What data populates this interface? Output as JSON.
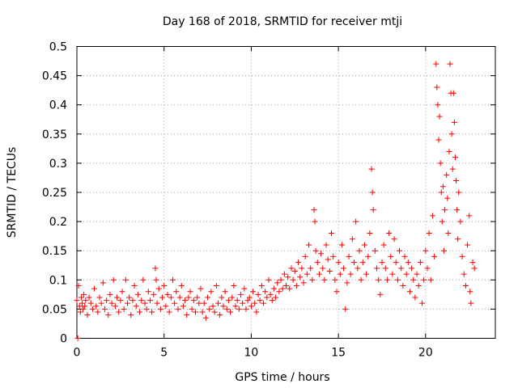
{
  "chart_data": {
    "type": "scatter",
    "title": "Day 168 of 2018, SRMTID for receiver mtji",
    "xlabel": "GPS time / hours",
    "ylabel": "SRMTID / TECUs",
    "xlim": [
      0,
      24
    ],
    "ylim": [
      0,
      0.5
    ],
    "xticks": [
      0,
      5,
      10,
      15,
      20
    ],
    "yticks": [
      0,
      0.05,
      0.1,
      0.15,
      0.2,
      0.25,
      0.3,
      0.35,
      0.4,
      0.45,
      0.5
    ],
    "xtick_labels": [
      "0",
      "5",
      "10",
      "15",
      "20"
    ],
    "ytick_labels": [
      "0",
      "0.05",
      "0.1",
      "0.15",
      "0.2",
      "0.25",
      "0.3",
      "0.35",
      "0.4",
      "0.45",
      "0.5"
    ],
    "grid": true,
    "marker": "+",
    "marker_color": "#ff0000",
    "series": [
      {
        "points": [
          [
            0.0,
            0.065
          ],
          [
            0.05,
            0.0
          ],
          [
            0.1,
            0.09
          ],
          [
            0.15,
            0.055
          ],
          [
            0.2,
            0.045
          ],
          [
            0.25,
            0.07
          ],
          [
            0.3,
            0.06
          ],
          [
            0.35,
            0.05
          ],
          [
            0.4,
            0.075
          ],
          [
            0.45,
            0.055
          ],
          [
            0.5,
            0.065
          ],
          [
            0.6,
            0.04
          ],
          [
            0.7,
            0.07
          ],
          [
            0.8,
            0.06
          ],
          [
            0.9,
            0.05
          ],
          [
            1.0,
            0.085
          ],
          [
            1.1,
            0.055
          ],
          [
            1.2,
            0.045
          ],
          [
            1.3,
            0.07
          ],
          [
            1.4,
            0.06
          ],
          [
            1.5,
            0.095
          ],
          [
            1.6,
            0.05
          ],
          [
            1.7,
            0.065
          ],
          [
            1.8,
            0.04
          ],
          [
            1.9,
            0.075
          ],
          [
            2.0,
            0.06
          ],
          [
            2.1,
            0.1
          ],
          [
            2.2,
            0.055
          ],
          [
            2.3,
            0.07
          ],
          [
            2.4,
            0.045
          ],
          [
            2.5,
            0.065
          ],
          [
            2.6,
            0.08
          ],
          [
            2.7,
            0.05
          ],
          [
            2.8,
            0.1
          ],
          [
            2.9,
            0.06
          ],
          [
            3.0,
            0.07
          ],
          [
            3.1,
            0.04
          ],
          [
            3.2,
            0.065
          ],
          [
            3.3,
            0.09
          ],
          [
            3.4,
            0.055
          ],
          [
            3.5,
            0.075
          ],
          [
            3.6,
            0.045
          ],
          [
            3.7,
            0.065
          ],
          [
            3.8,
            0.1
          ],
          [
            3.9,
            0.06
          ],
          [
            4.0,
            0.05
          ],
          [
            4.1,
            0.08
          ],
          [
            4.2,
            0.065
          ],
          [
            4.3,
            0.045
          ],
          [
            4.4,
            0.075
          ],
          [
            4.5,
            0.12
          ],
          [
            4.55,
            0.1
          ],
          [
            4.6,
            0.06
          ],
          [
            4.7,
            0.085
          ],
          [
            4.8,
            0.05
          ],
          [
            4.9,
            0.07
          ],
          [
            5.0,
            0.09
          ],
          [
            5.1,
            0.055
          ],
          [
            5.2,
            0.075
          ],
          [
            5.3,
            0.045
          ],
          [
            5.4,
            0.07
          ],
          [
            5.5,
            0.1
          ],
          [
            5.6,
            0.06
          ],
          [
            5.7,
            0.08
          ],
          [
            5.8,
            0.05
          ],
          [
            5.9,
            0.07
          ],
          [
            6.0,
            0.09
          ],
          [
            6.1,
            0.055
          ],
          [
            6.2,
            0.065
          ],
          [
            6.3,
            0.04
          ],
          [
            6.4,
            0.07
          ],
          [
            6.5,
            0.08
          ],
          [
            6.6,
            0.05
          ],
          [
            6.7,
            0.065
          ],
          [
            6.8,
            0.045
          ],
          [
            6.9,
            0.07
          ],
          [
            7.0,
            0.06
          ],
          [
            7.1,
            0.085
          ],
          [
            7.2,
            0.045
          ],
          [
            7.3,
            0.06
          ],
          [
            7.4,
            0.035
          ],
          [
            7.5,
            0.07
          ],
          [
            7.6,
            0.05
          ],
          [
            7.7,
            0.08
          ],
          [
            7.8,
            0.055
          ],
          [
            7.9,
            0.045
          ],
          [
            8.0,
            0.09
          ],
          [
            8.1,
            0.06
          ],
          [
            8.2,
            0.04
          ],
          [
            8.3,
            0.07
          ],
          [
            8.4,
            0.055
          ],
          [
            8.5,
            0.08
          ],
          [
            8.6,
            0.05
          ],
          [
            8.7,
            0.065
          ],
          [
            8.8,
            0.045
          ],
          [
            8.9,
            0.07
          ],
          [
            9.0,
            0.09
          ],
          [
            9.1,
            0.055
          ],
          [
            9.2,
            0.065
          ],
          [
            9.3,
            0.05
          ],
          [
            9.4,
            0.075
          ],
          [
            9.5,
            0.06
          ],
          [
            9.6,
            0.085
          ],
          [
            9.7,
            0.05
          ],
          [
            9.8,
            0.065
          ],
          [
            9.9,
            0.07
          ],
          [
            10.0,
            0.055
          ],
          [
            10.1,
            0.08
          ],
          [
            10.2,
            0.06
          ],
          [
            10.3,
            0.045
          ],
          [
            10.4,
            0.075
          ],
          [
            10.5,
            0.065
          ],
          [
            10.6,
            0.09
          ],
          [
            10.7,
            0.06
          ],
          [
            10.8,
            0.08
          ],
          [
            10.9,
            0.07
          ],
          [
            11.0,
            0.1
          ],
          [
            11.1,
            0.075
          ],
          [
            11.2,
            0.065
          ],
          [
            11.3,
            0.085
          ],
          [
            11.4,
            0.07
          ],
          [
            11.5,
            0.095
          ],
          [
            11.6,
            0.08
          ],
          [
            11.7,
            0.1
          ],
          [
            11.8,
            0.085
          ],
          [
            11.9,
            0.11
          ],
          [
            12.0,
            0.09
          ],
          [
            12.1,
            0.105
          ],
          [
            12.2,
            0.085
          ],
          [
            12.3,
            0.12
          ],
          [
            12.4,
            0.1
          ],
          [
            12.5,
            0.115
          ],
          [
            12.6,
            0.09
          ],
          [
            12.7,
            0.13
          ],
          [
            12.8,
            0.105
          ],
          [
            12.9,
            0.12
          ],
          [
            13.0,
            0.095
          ],
          [
            13.1,
            0.14
          ],
          [
            13.2,
            0.11
          ],
          [
            13.3,
            0.16
          ],
          [
            13.4,
            0.12
          ],
          [
            13.5,
            0.1
          ],
          [
            13.6,
            0.22
          ],
          [
            13.65,
            0.2
          ],
          [
            13.7,
            0.15
          ],
          [
            13.8,
            0.13
          ],
          [
            13.9,
            0.11
          ],
          [
            14.0,
            0.145
          ],
          [
            14.1,
            0.12
          ],
          [
            14.2,
            0.1
          ],
          [
            14.3,
            0.16
          ],
          [
            14.4,
            0.135
          ],
          [
            14.5,
            0.115
          ],
          [
            14.6,
            0.18
          ],
          [
            14.7,
            0.14
          ],
          [
            14.8,
            0.1
          ],
          [
            14.9,
            0.08
          ],
          [
            15.0,
            0.13
          ],
          [
            15.1,
            0.11
          ],
          [
            15.2,
            0.16
          ],
          [
            15.3,
            0.12
          ],
          [
            15.4,
            0.05
          ],
          [
            15.5,
            0.095
          ],
          [
            15.6,
            0.14
          ],
          [
            15.7,
            0.11
          ],
          [
            15.8,
            0.17
          ],
          [
            15.9,
            0.13
          ],
          [
            16.0,
            0.2
          ],
          [
            16.1,
            0.12
          ],
          [
            16.2,
            0.15
          ],
          [
            16.3,
            0.1
          ],
          [
            16.4,
            0.13
          ],
          [
            16.5,
            0.16
          ],
          [
            16.6,
            0.11
          ],
          [
            16.7,
            0.14
          ],
          [
            16.8,
            0.18
          ],
          [
            16.9,
            0.29
          ],
          [
            16.95,
            0.25
          ],
          [
            17.0,
            0.22
          ],
          [
            17.1,
            0.15
          ],
          [
            17.2,
            0.12
          ],
          [
            17.3,
            0.1
          ],
          [
            17.4,
            0.075
          ],
          [
            17.5,
            0.13
          ],
          [
            17.6,
            0.16
          ],
          [
            17.7,
            0.12
          ],
          [
            17.8,
            0.1
          ],
          [
            17.9,
            0.18
          ],
          [
            18.0,
            0.14
          ],
          [
            18.1,
            0.11
          ],
          [
            18.2,
            0.17
          ],
          [
            18.3,
            0.13
          ],
          [
            18.4,
            0.1
          ],
          [
            18.5,
            0.15
          ],
          [
            18.6,
            0.12
          ],
          [
            18.7,
            0.09
          ],
          [
            18.8,
            0.14
          ],
          [
            18.9,
            0.11
          ],
          [
            19.0,
            0.13
          ],
          [
            19.1,
            0.08
          ],
          [
            19.2,
            0.12
          ],
          [
            19.3,
            0.1
          ],
          [
            19.4,
            0.07
          ],
          [
            19.5,
            0.11
          ],
          [
            19.6,
            0.09
          ],
          [
            19.7,
            0.13
          ],
          [
            19.8,
            0.06
          ],
          [
            19.9,
            0.1
          ],
          [
            20.0,
            0.15
          ],
          [
            20.1,
            0.12
          ],
          [
            20.2,
            0.18
          ],
          [
            20.3,
            0.1
          ],
          [
            20.4,
            0.21
          ],
          [
            20.5,
            0.14
          ],
          [
            20.6,
            0.47
          ],
          [
            20.65,
            0.43
          ],
          [
            20.7,
            0.4
          ],
          [
            20.75,
            0.34
          ],
          [
            20.8,
            0.38
          ],
          [
            20.85,
            0.3
          ],
          [
            20.9,
            0.25
          ],
          [
            20.95,
            0.2
          ],
          [
            21.0,
            0.26
          ],
          [
            21.05,
            0.15
          ],
          [
            21.1,
            0.22
          ],
          [
            21.2,
            0.28
          ],
          [
            21.25,
            0.24
          ],
          [
            21.3,
            0.18
          ],
          [
            21.35,
            0.32
          ],
          [
            21.4,
            0.47
          ],
          [
            21.45,
            0.42
          ],
          [
            21.5,
            0.35
          ],
          [
            21.55,
            0.29
          ],
          [
            21.6,
            0.42
          ],
          [
            21.65,
            0.37
          ],
          [
            21.7,
            0.31
          ],
          [
            21.75,
            0.27
          ],
          [
            21.8,
            0.22
          ],
          [
            21.85,
            0.17
          ],
          [
            21.9,
            0.25
          ],
          [
            22.0,
            0.2
          ],
          [
            22.1,
            0.14
          ],
          [
            22.2,
            0.11
          ],
          [
            22.3,
            0.09
          ],
          [
            22.4,
            0.16
          ],
          [
            22.5,
            0.21
          ],
          [
            22.55,
            0.08
          ],
          [
            22.6,
            0.06
          ],
          [
            22.7,
            0.13
          ],
          [
            22.8,
            0.12
          ]
        ]
      }
    ]
  }
}
